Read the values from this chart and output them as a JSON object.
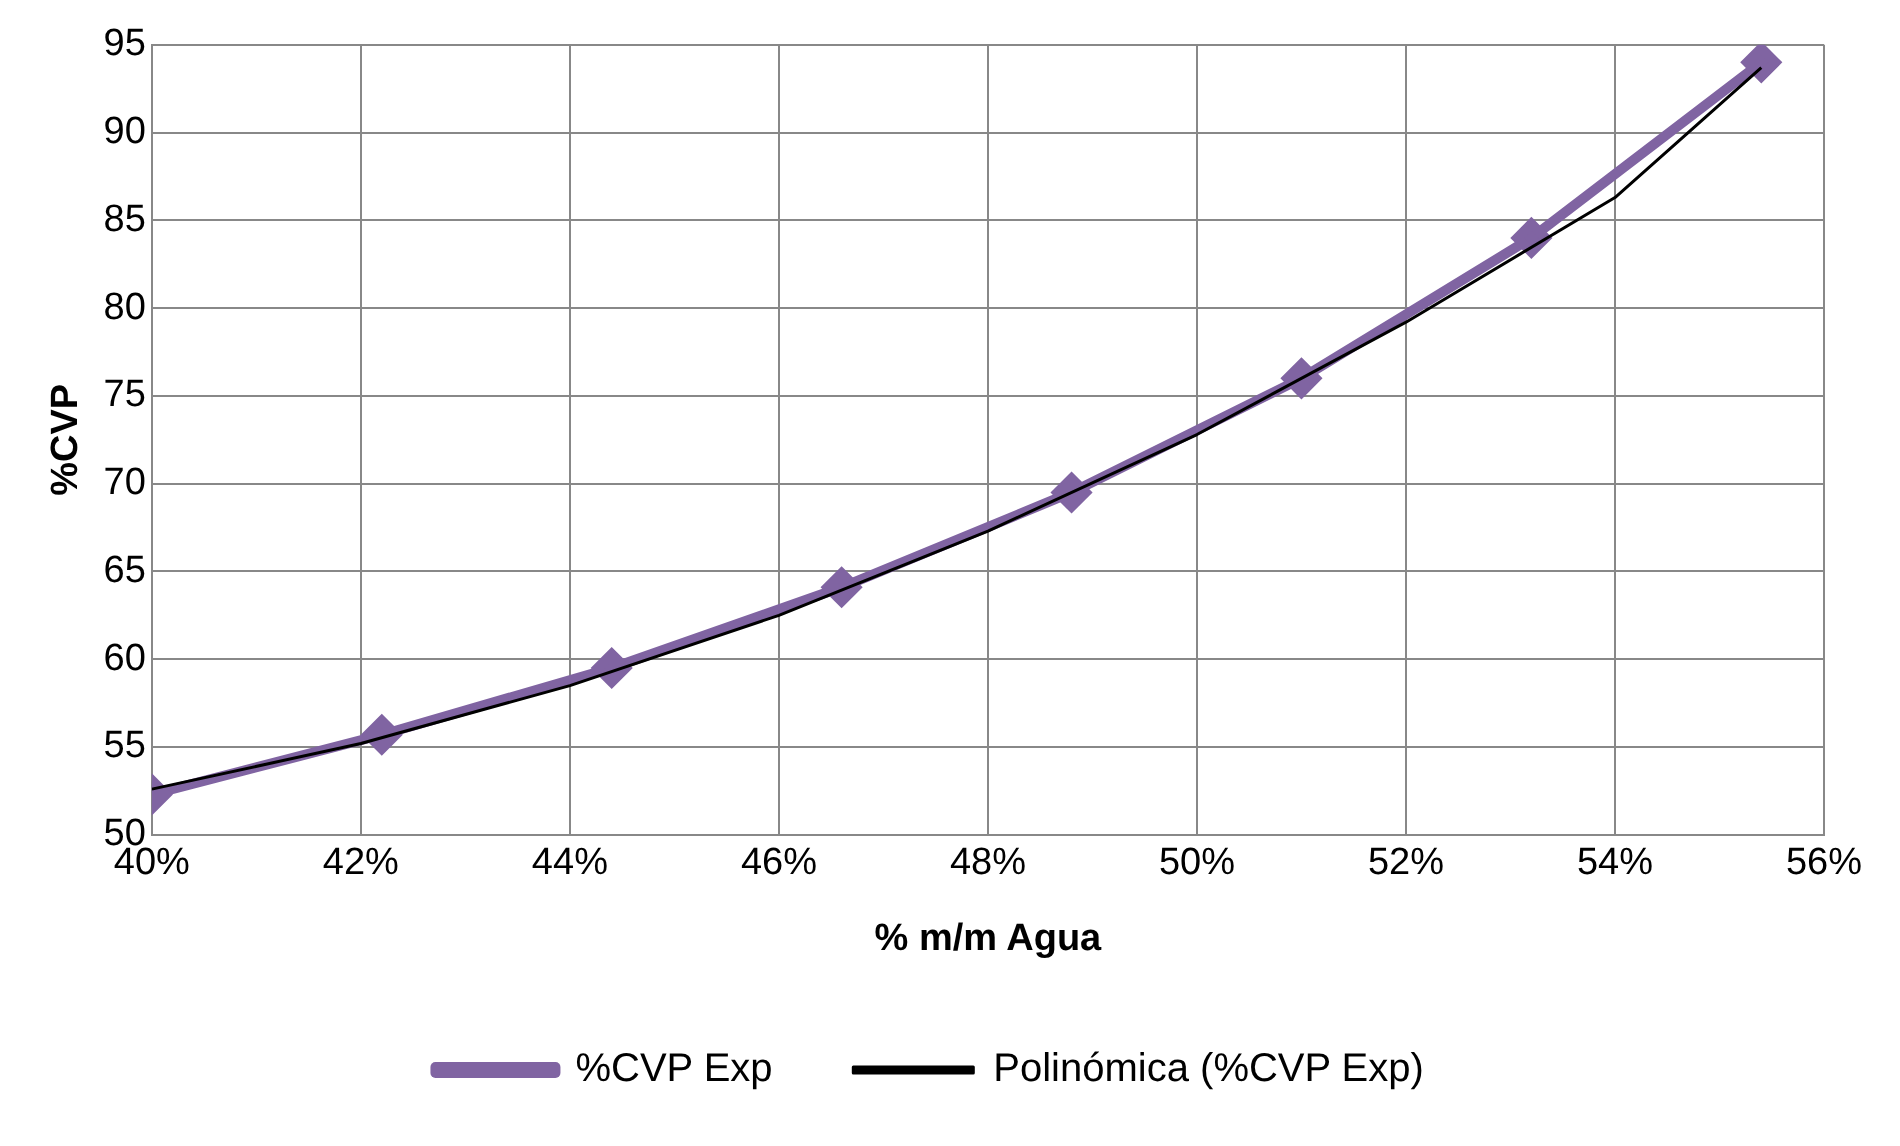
{
  "chart_data": {
    "type": "line",
    "xlabel": "% m/m Agua",
    "ylabel": "%CVP",
    "xlim": [
      40,
      56
    ],
    "xticks": [
      {
        "value": 40,
        "label": "40%"
      },
      {
        "value": 42,
        "label": "42%"
      },
      {
        "value": 44,
        "label": "44%"
      },
      {
        "value": 46,
        "label": "46%"
      },
      {
        "value": 48,
        "label": "48%"
      },
      {
        "value": 50,
        "label": "50%"
      },
      {
        "value": 52,
        "label": "52%"
      },
      {
        "value": 54,
        "label": "54%"
      },
      {
        "value": 56,
        "label": "56%"
      }
    ],
    "ylim": [
      50,
      95
    ],
    "yticks": [
      50,
      55,
      60,
      65,
      70,
      75,
      80,
      85,
      90,
      95
    ],
    "grid": true,
    "legend": "bottom",
    "series": [
      {
        "name": "%CVP Exp",
        "color": "#8064a2",
        "marker": "diamond",
        "line_style": "solid",
        "x": [
          40,
          42.2,
          44.4,
          46.6,
          48.8,
          51,
          53.2,
          55.4
        ],
        "values": [
          52.3,
          55.7,
          59.5,
          64.1,
          69.5,
          76,
          84,
          94
        ]
      },
      {
        "name": "Polinómica (%CVP Exp)",
        "color": "#000000",
        "marker": "none",
        "line_style": "solid",
        "x": [
          40,
          42,
          44,
          46,
          48,
          50,
          52,
          54,
          55.4
        ],
        "values": [
          52.6,
          55.2,
          58.5,
          62.5,
          67.3,
          72.8,
          79.2,
          86.3,
          93.7
        ]
      }
    ]
  }
}
